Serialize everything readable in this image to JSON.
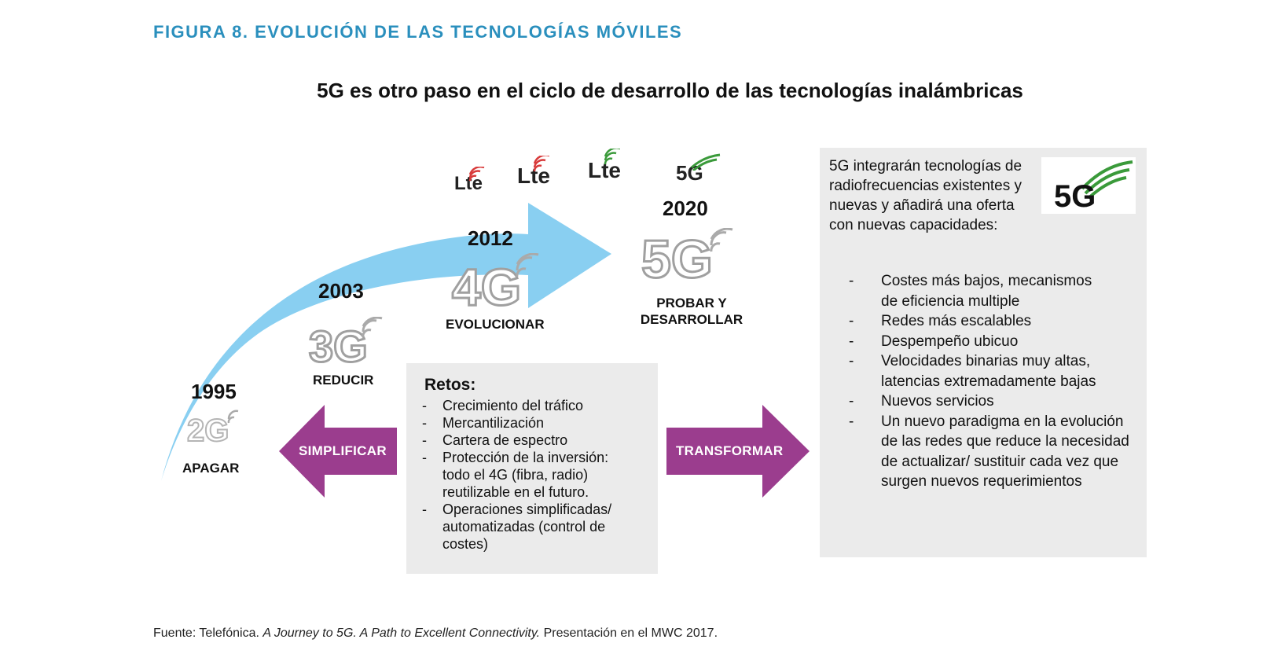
{
  "figure_title": "FIGURA 8.  EVOLUCIÓN DE LAS TECNOLOGÍAS MÓVILES",
  "subtitle": "5G es otro paso en el ciclo de desarrollo de las tecnologías inalámbricas",
  "timeline": [
    {
      "year": "1995",
      "logo": "2G",
      "action": "APAGAR"
    },
    {
      "year": "2003",
      "logo": "3G",
      "action": "REDUCIR"
    },
    {
      "year": "2012",
      "logo": "4G",
      "action": "EVOLUCIONAR"
    },
    {
      "year": "2020",
      "logo": "5G",
      "action_line1": "PROBAR Y",
      "action_line2": "DESARROLLAR"
    }
  ],
  "small_logos": [
    "Lte",
    "Lte",
    "Lte",
    "5G"
  ],
  "retos": {
    "title": "Retos:",
    "items": [
      "Crecimiento del tráfico",
      "Mercantilización",
      "Cartera de espectro",
      "Protección de la inversión: todo el 4G (fibra, radio) reutilizable en el futuro.",
      "Operaciones simplificadas/ automatizadas (control de costes)"
    ]
  },
  "arrows": {
    "left": "SIMPLIFICAR",
    "right": "TRANSFORMAR"
  },
  "fiveg_box": {
    "logo": "5G",
    "intro": "5G integrarán tecnologías de radiofrecuencias existentes y nuevas y añadirá una oferta con  nuevas capacidades:",
    "items": [
      "Costes más bajos, mecanismos de eficiencia multiple",
      "Redes más escalables",
      "Despempeño ubicuo",
      "Velocidades binarias muy altas, latencias  extremadamente bajas",
      "Nuevos servicios",
      "Un nuevo paradigma en la evolución de las redes que reduce la necesidad de actualizar/ sustituir cada vez que surgen nuevos requerimientos"
    ]
  },
  "source": {
    "prefix": "Fuente: Telefónica. ",
    "italic": "A Journey to 5G. A Path to Excellent Connectivity.",
    "suffix": " Presentación en el MWC 2017."
  },
  "colors": {
    "title_blue": "#2a8fbd",
    "arrow_blue": "#7ccaf0",
    "arrow_purple": "#9b3d8e",
    "box_grey": "#ebebeb",
    "fiveg_green": "#3a9a3a"
  }
}
